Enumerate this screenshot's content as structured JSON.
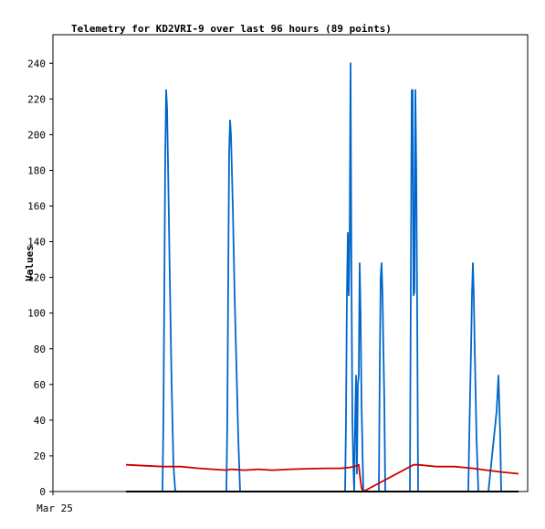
{
  "chart_data": {
    "type": "line",
    "title": "Telemetry for KD2VRI-9 over last 96 hours (89 points)",
    "xlabel": "",
    "ylabel": "Values",
    "x_tick_labels": [
      "Mar 25"
    ],
    "ylim": [
      0,
      256
    ],
    "yticks": [
      0,
      20,
      40,
      60,
      80,
      100,
      120,
      140,
      160,
      180,
      200,
      220,
      240
    ],
    "grid": false,
    "legend": "none",
    "xlim": [
      0,
      520
    ],
    "series": [
      {
        "color": "#0066cc",
        "points": [
          [
            80,
            0
          ],
          [
            120,
            0
          ],
          [
            121,
            40
          ],
          [
            122,
            112
          ],
          [
            123,
            188
          ],
          [
            124,
            225
          ],
          [
            125,
            215
          ],
          [
            126,
            185
          ],
          [
            128,
            120
          ],
          [
            130,
            60
          ],
          [
            132,
            15
          ],
          [
            134,
            0
          ],
          [
            190,
            0
          ],
          [
            191,
            40
          ],
          [
            192,
            120
          ],
          [
            193,
            190
          ],
          [
            194,
            208
          ],
          [
            195,
            200
          ],
          [
            197,
            160
          ],
          [
            199,
            110
          ],
          [
            201,
            70
          ],
          [
            203,
            30
          ],
          [
            205,
            0
          ],
          [
            320,
            0
          ],
          [
            321,
            40
          ],
          [
            322,
            110
          ],
          [
            323,
            145
          ],
          [
            324,
            110
          ],
          [
            325,
            140
          ],
          [
            326,
            240
          ],
          [
            327,
            120
          ],
          [
            328,
            40
          ],
          [
            329,
            15
          ],
          [
            330,
            0
          ],
          [
            331,
            40
          ],
          [
            332,
            65
          ],
          [
            333,
            10
          ],
          [
            334,
            60
          ],
          [
            335,
            65
          ],
          [
            336,
            128
          ],
          [
            337,
            100
          ],
          [
            338,
            50
          ],
          [
            340,
            0
          ],
          [
            357,
            0
          ],
          [
            358,
            70
          ],
          [
            359,
            120
          ],
          [
            360,
            128
          ],
          [
            361,
            110
          ],
          [
            363,
            50
          ],
          [
            364,
            0
          ],
          [
            391,
            0
          ],
          [
            392,
            112
          ],
          [
            393,
            225
          ],
          [
            394,
            225
          ],
          [
            395,
            110
          ],
          [
            396,
            112
          ],
          [
            397,
            225
          ],
          [
            398,
            180
          ],
          [
            399,
            100
          ],
          [
            400,
            0
          ],
          [
            455,
            0
          ],
          [
            456,
            30
          ],
          [
            458,
            80
          ],
          [
            459,
            110
          ],
          [
            460,
            128
          ],
          [
            461,
            110
          ],
          [
            462,
            80
          ],
          [
            464,
            30
          ],
          [
            466,
            0
          ],
          [
            477,
            0
          ],
          [
            480,
            15
          ],
          [
            483,
            30
          ],
          [
            486,
            45
          ],
          [
            488,
            65
          ],
          [
            490,
            30
          ],
          [
            491,
            0
          ],
          [
            510,
            0
          ]
        ]
      },
      {
        "color": "#cc0000",
        "points": [
          [
            80,
            15
          ],
          [
            100,
            14.5
          ],
          [
            120,
            14
          ],
          [
            140,
            14
          ],
          [
            160,
            13
          ],
          [
            175,
            12.5
          ],
          [
            190,
            12
          ],
          [
            195,
            12.5
          ],
          [
            210,
            12
          ],
          [
            225,
            12.5
          ],
          [
            240,
            12
          ],
          [
            260,
            12.5
          ],
          [
            280,
            12.8
          ],
          [
            300,
            13
          ],
          [
            315,
            13
          ],
          [
            325,
            13.5
          ],
          [
            330,
            14
          ],
          [
            335,
            15
          ],
          [
            336,
            10
          ],
          [
            338,
            2
          ],
          [
            340,
            0
          ],
          [
            395,
            15
          ],
          [
            400,
            15
          ],
          [
            420,
            14
          ],
          [
            440,
            14
          ],
          [
            460,
            13
          ],
          [
            475,
            12
          ],
          [
            490,
            11
          ],
          [
            500,
            10.5
          ],
          [
            510,
            10
          ]
        ]
      },
      {
        "color": "#000000",
        "points": [
          [
            80,
            0
          ],
          [
            510,
            0
          ]
        ]
      }
    ]
  }
}
